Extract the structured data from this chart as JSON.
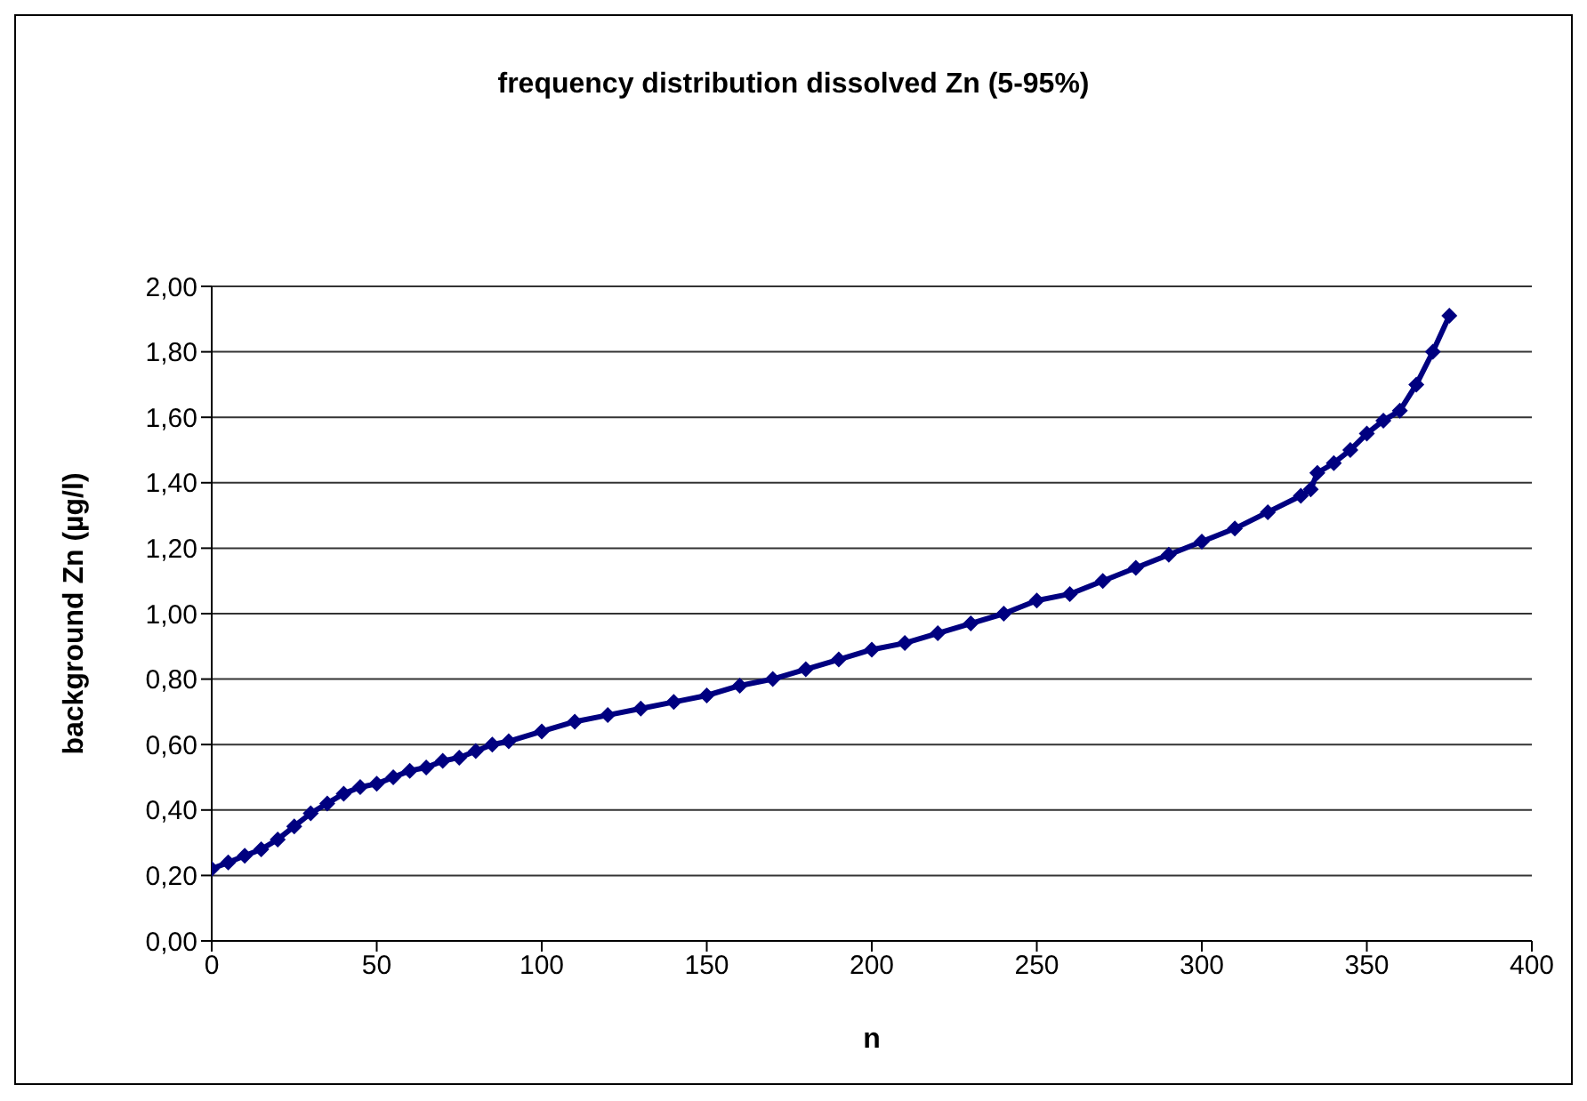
{
  "chart_data": {
    "type": "line",
    "title": "frequency distribution dissolved Zn (5-95%)",
    "xlabel": "n",
    "ylabel": "background Zn (µg/l)",
    "x": [
      0,
      5,
      10,
      15,
      20,
      25,
      30,
      35,
      40,
      45,
      50,
      55,
      60,
      65,
      70,
      75,
      80,
      85,
      90,
      100,
      110,
      120,
      130,
      140,
      150,
      160,
      170,
      180,
      190,
      200,
      210,
      220,
      230,
      240,
      250,
      260,
      270,
      280,
      290,
      300,
      310,
      320,
      330,
      333,
      335,
      340,
      345,
      350,
      355,
      360,
      365,
      370,
      375
    ],
    "series": [
      {
        "color": "#000080",
        "values": [
          0.22,
          0.24,
          0.26,
          0.28,
          0.31,
          0.35,
          0.39,
          0.42,
          0.45,
          0.47,
          0.48,
          0.5,
          0.52,
          0.53,
          0.55,
          0.56,
          0.58,
          0.6,
          0.61,
          0.64,
          0.67,
          0.69,
          0.71,
          0.73,
          0.75,
          0.78,
          0.8,
          0.83,
          0.86,
          0.89,
          0.91,
          0.94,
          0.97,
          1.0,
          1.04,
          1.06,
          1.1,
          1.14,
          1.18,
          1.22,
          1.26,
          1.31,
          1.36,
          1.38,
          1.43,
          1.46,
          1.5,
          1.55,
          1.59,
          1.62,
          1.7,
          1.8,
          1.91
        ]
      }
    ],
    "xlim": [
      0,
      400
    ],
    "xticks": [
      0,
      50,
      100,
      150,
      200,
      250,
      300,
      350,
      400
    ],
    "ylim": [
      0,
      2
    ],
    "yticks": [
      {
        "value": 0,
        "label": "0,00"
      },
      {
        "value": 0.2,
        "label": "0,20"
      },
      {
        "value": 0.4,
        "label": "0,40"
      },
      {
        "value": 0.6,
        "label": "0,60"
      },
      {
        "value": 0.8,
        "label": "0,80"
      },
      {
        "value": 1,
        "label": "1,00"
      },
      {
        "value": 1.2,
        "label": "1,20"
      },
      {
        "value": 1.4,
        "label": "1,40"
      },
      {
        "value": 1.6,
        "label": "1,60"
      },
      {
        "value": 1.8,
        "label": "1,80"
      },
      {
        "value": 2,
        "label": "2,00"
      }
    ],
    "grid": "y",
    "marker": "diamond",
    "line_style": "solid"
  }
}
